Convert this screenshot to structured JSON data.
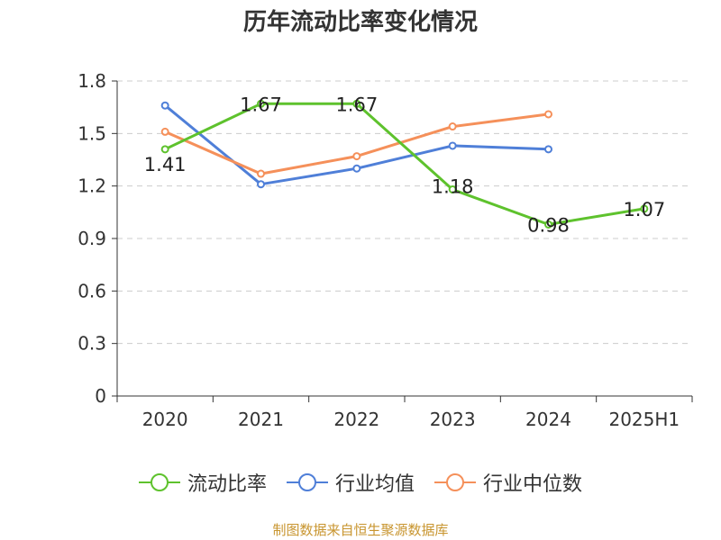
{
  "chart_data": {
    "type": "line",
    "title": "历年流动比率变化情况",
    "categories": [
      "2020",
      "2021",
      "2022",
      "2023",
      "2024",
      "2025H1"
    ],
    "ylim": [
      0,
      1.8
    ],
    "yticks": [
      "0",
      "0.3",
      "0.6",
      "0.9",
      "1.2",
      "1.5",
      "1.8"
    ],
    "grid": true,
    "legend_position": "bottom",
    "series": [
      {
        "name": "流动比率",
        "color": "#5ec22d",
        "values": [
          1.41,
          1.67,
          1.67,
          1.18,
          0.98,
          1.07
        ],
        "labels": [
          "1.41",
          "1.67",
          "1.67",
          "1.18",
          "0.98",
          "1.07"
        ]
      },
      {
        "name": "行业均值",
        "color": "#4f7fd8",
        "values": [
          1.66,
          1.21,
          1.3,
          1.43,
          1.41,
          null
        ]
      },
      {
        "name": "行业中位数",
        "color": "#f5905a",
        "values": [
          1.51,
          1.27,
          1.37,
          1.54,
          1.61,
          null
        ]
      }
    ]
  },
  "source": "制图数据来自恒生聚源数据库"
}
